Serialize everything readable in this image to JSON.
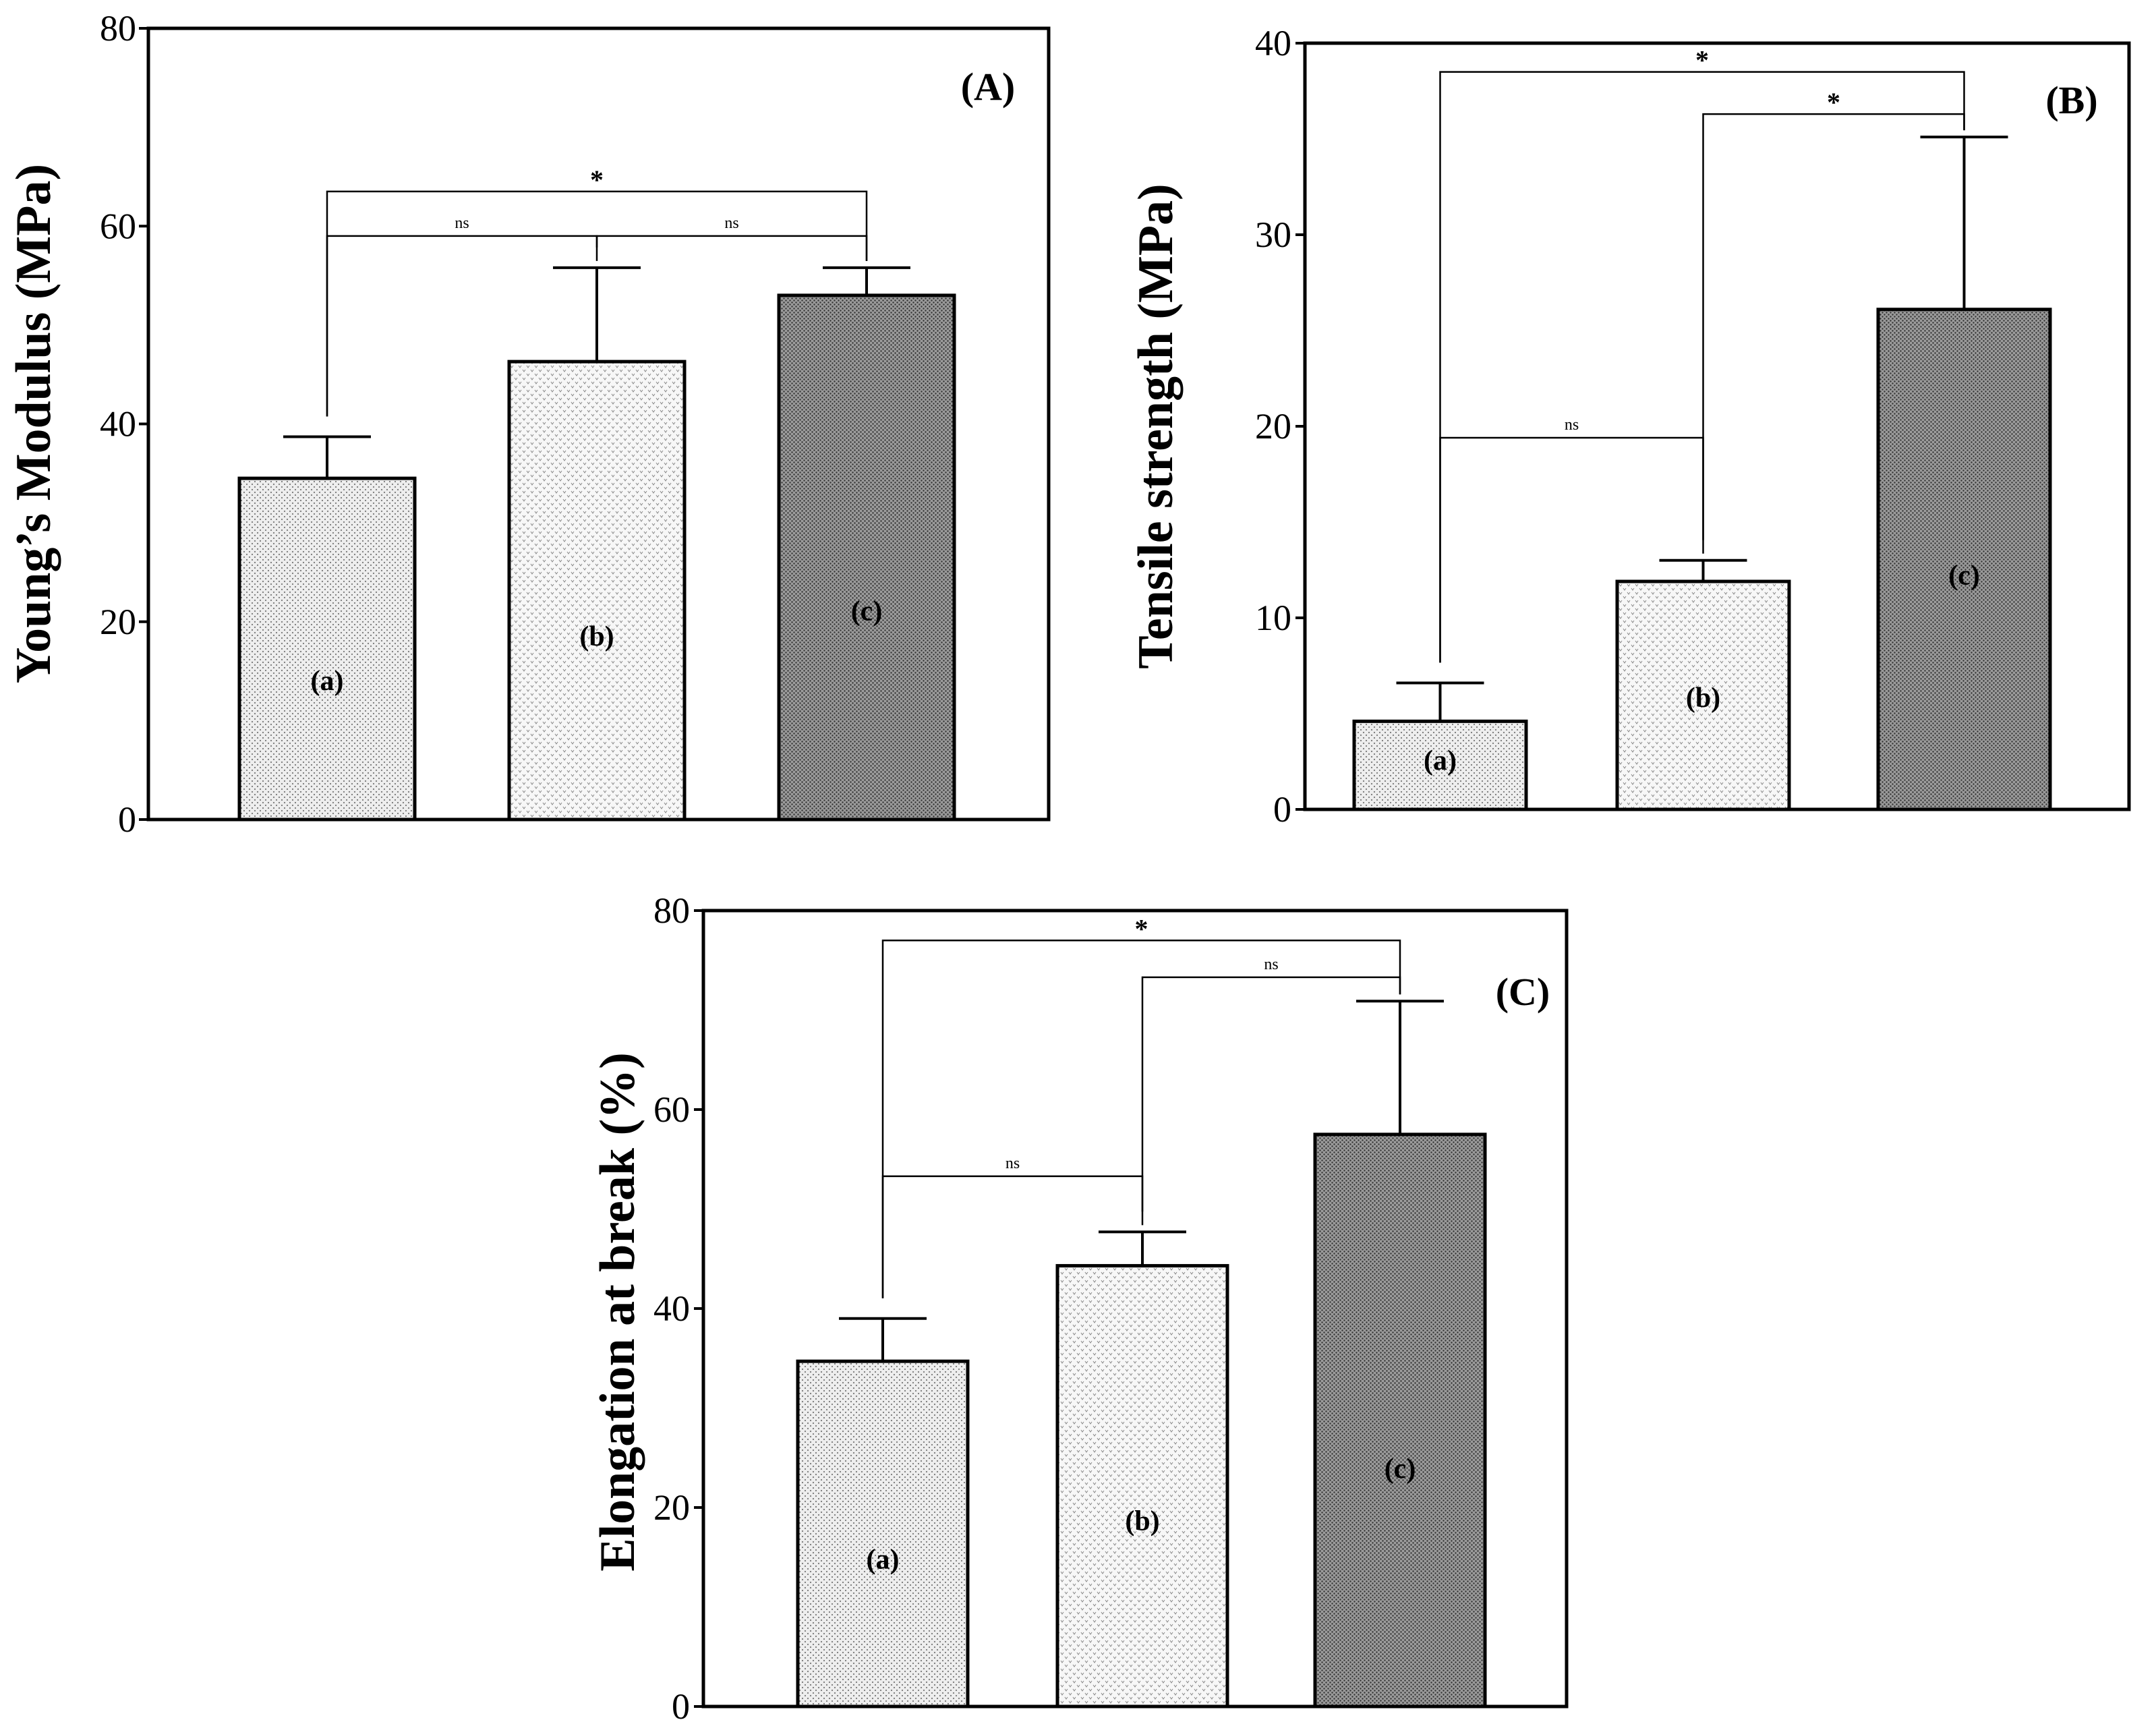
{
  "colors": {
    "axis": "#000000",
    "bar_a": "#e9e9e9",
    "bar_b": "#f3f3f3",
    "bar_c": "#8a8a8a"
  },
  "chart_data": [
    {
      "type": "bar",
      "panel_label": "(A)",
      "ylabel": "Young’s Modulus (MPa)",
      "ylim": [
        0,
        80
      ],
      "yticks": [
        0,
        20,
        40,
        60,
        80
      ],
      "categories": [
        "(a)",
        "(b)",
        "(c)"
      ],
      "values": [
        34.5,
        46.3,
        53.0
      ],
      "errors": [
        4.2,
        9.5,
        2.8
      ],
      "significance": [
        {
          "from": 0,
          "to": 2,
          "label": "*",
          "level": 63.5
        },
        {
          "from": 0,
          "to": 1,
          "label": "ns",
          "level": 59.0
        },
        {
          "from": 1,
          "to": 2,
          "label": "ns",
          "level": 59.0
        }
      ]
    },
    {
      "type": "bar",
      "panel_label": "(B)",
      "ylabel": "Tensile strength (MPa)",
      "ylim": [
        0,
        40
      ],
      "yticks": [
        0,
        10,
        20,
        30,
        40
      ],
      "categories": [
        "(a)",
        "(b)",
        "(c)"
      ],
      "values": [
        4.6,
        11.9,
        26.1
      ],
      "errors": [
        2.0,
        1.1,
        9.0
      ],
      "significance": [
        {
          "from": 0,
          "to": 2,
          "label": "*",
          "level": 38.5
        },
        {
          "from": 1,
          "to": 2,
          "label": "*",
          "level": 36.3
        },
        {
          "from": 0,
          "to": 1,
          "label": "ns",
          "level": 19.4
        }
      ]
    },
    {
      "type": "bar",
      "panel_label": "(C)",
      "ylabel": "Elongation at break (%)",
      "ylim": [
        0,
        80
      ],
      "yticks": [
        0,
        20,
        40,
        60,
        80
      ],
      "categories": [
        "(a)",
        "(b)",
        "(c)"
      ],
      "values": [
        34.7,
        44.3,
        57.5
      ],
      "errors": [
        4.3,
        3.4,
        13.4
      ],
      "significance": [
        {
          "from": 0,
          "to": 2,
          "label": "*",
          "level": 77.0
        },
        {
          "from": 1,
          "to": 2,
          "label": "ns",
          "level": 73.3
        },
        {
          "from": 0,
          "to": 1,
          "label": "ns",
          "level": 53.3
        }
      ]
    }
  ]
}
